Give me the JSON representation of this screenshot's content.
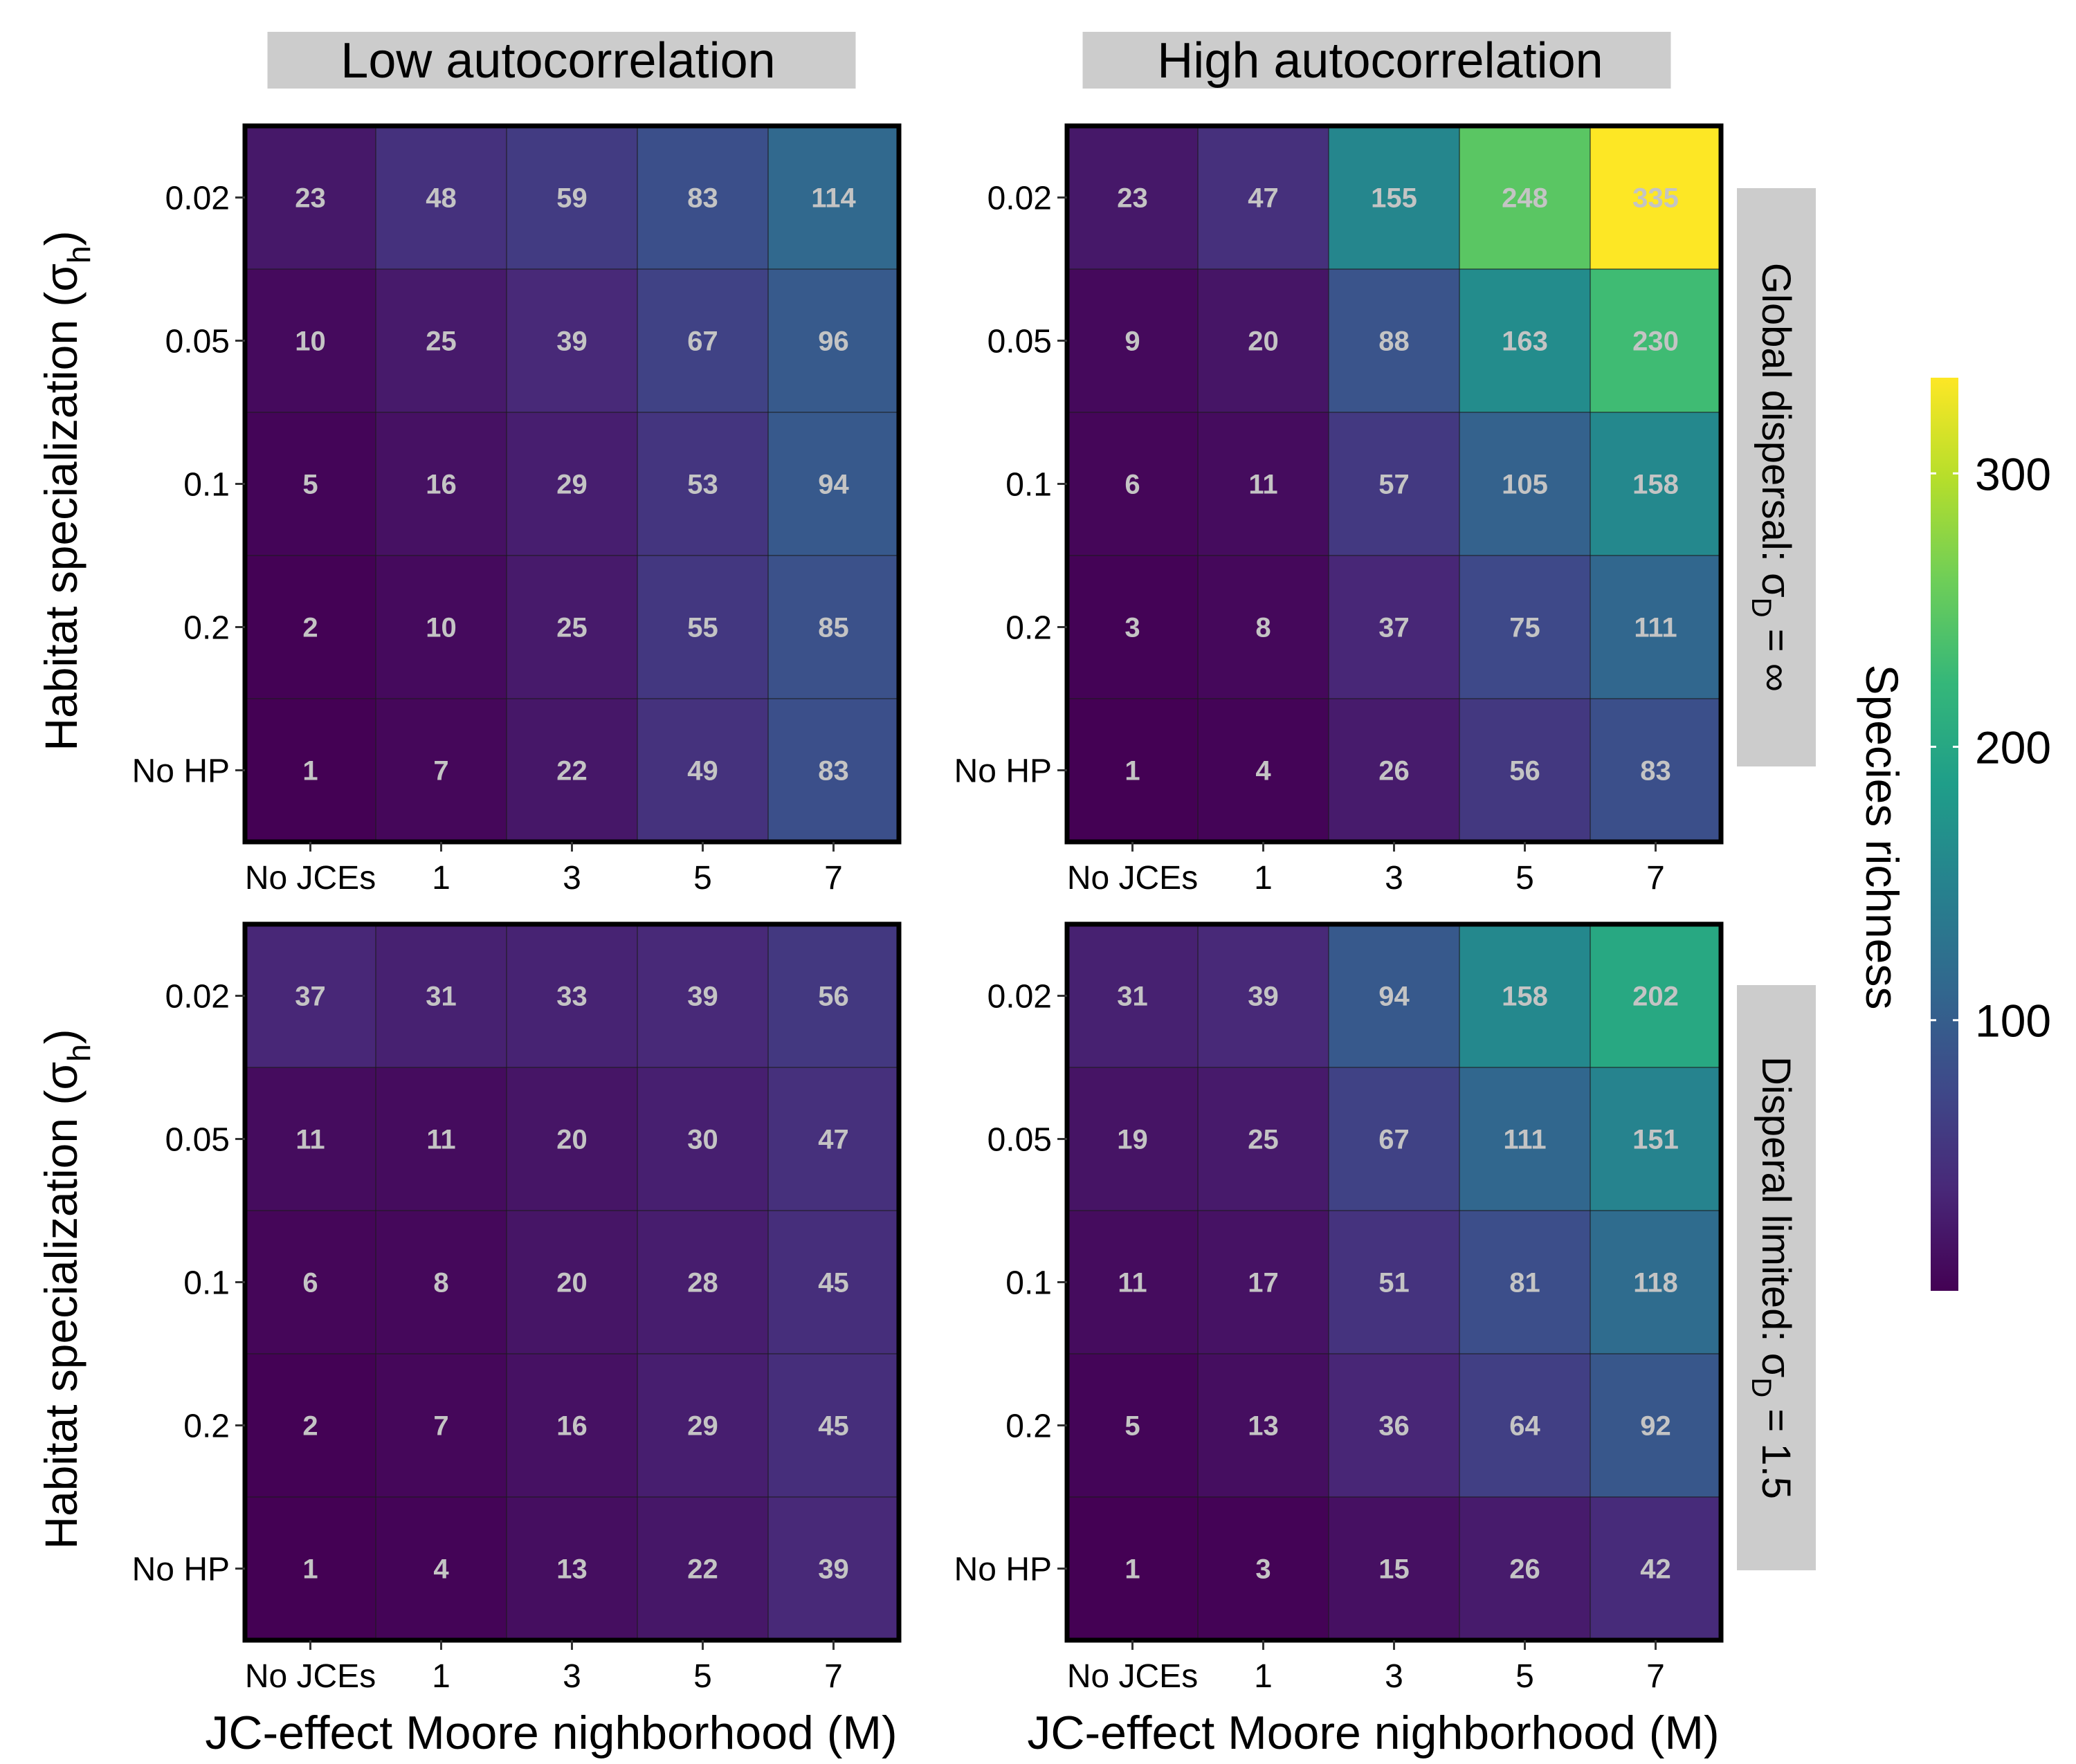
{
  "colorbar": {
    "title": "Species richness",
    "ticks": [
      100,
      200,
      300
    ],
    "range": [
      1,
      335
    ],
    "colors": [
      "#440154",
      "#482878",
      "#3e4989",
      "#31688e",
      "#26828e",
      "#1f9e89",
      "#35b779",
      "#6ece58",
      "#b5de2b",
      "#fde725"
    ]
  },
  "cell_text_color": "#c4c4c4",
  "strip_color": "#cccccc",
  "chart_data": [
    {
      "type": "heatmap",
      "column_title": "Low autocorrelation",
      "row_title": "",
      "ylabel": "Habitat specialization (σh)",
      "xlabel": "",
      "x_categories": [
        "No JCEs",
        "1",
        "3",
        "5",
        "7"
      ],
      "y_categories": [
        "0.02",
        "0.05",
        "0.1",
        "0.2",
        "No HP"
      ],
      "values": [
        [
          23,
          48,
          59,
          83,
          114
        ],
        [
          10,
          25,
          39,
          67,
          96
        ],
        [
          5,
          16,
          29,
          53,
          94
        ],
        [
          2,
          10,
          25,
          55,
          85
        ],
        [
          1,
          7,
          22,
          49,
          83
        ]
      ]
    },
    {
      "type": "heatmap",
      "column_title": "High autocorrelation",
      "row_title": "Global dispersal:  σD = ∞",
      "ylabel": "",
      "xlabel": "",
      "x_categories": [
        "No JCEs",
        "1",
        "3",
        "5",
        "7"
      ],
      "y_categories": [
        "0.02",
        "0.05",
        "0.1",
        "0.2",
        "No HP"
      ],
      "values": [
        [
          23,
          47,
          155,
          248,
          335
        ],
        [
          9,
          20,
          88,
          163,
          230
        ],
        [
          6,
          11,
          57,
          105,
          158
        ],
        [
          3,
          8,
          37,
          75,
          111
        ],
        [
          1,
          4,
          26,
          56,
          83
        ]
      ]
    },
    {
      "type": "heatmap",
      "column_title": "",
      "row_title": "",
      "ylabel": "Habitat specialization (σh)",
      "xlabel": "JC-effect Moore nighborhood (M)",
      "x_categories": [
        "No JCEs",
        "1",
        "3",
        "5",
        "7"
      ],
      "y_categories": [
        "0.02",
        "0.05",
        "0.1",
        "0.2",
        "No HP"
      ],
      "values": [
        [
          37,
          31,
          33,
          39,
          56
        ],
        [
          11,
          11,
          20,
          30,
          47
        ],
        [
          6,
          8,
          20,
          28,
          45
        ],
        [
          2,
          7,
          16,
          29,
          45
        ],
        [
          1,
          4,
          13,
          22,
          39
        ]
      ]
    },
    {
      "type": "heatmap",
      "column_title": "",
      "row_title": "Disperal limited:  σD = 1.5",
      "ylabel": "",
      "xlabel": "JC-effect Moore nighborhood (M)",
      "x_categories": [
        "No JCEs",
        "1",
        "3",
        "5",
        "7"
      ],
      "y_categories": [
        "0.02",
        "0.05",
        "0.1",
        "0.2",
        "No HP"
      ],
      "values": [
        [
          31,
          39,
          94,
          158,
          202
        ],
        [
          19,
          25,
          67,
          111,
          151
        ],
        [
          11,
          17,
          51,
          81,
          118
        ],
        [
          5,
          13,
          36,
          64,
          92
        ],
        [
          1,
          3,
          15,
          26,
          42
        ]
      ]
    }
  ]
}
